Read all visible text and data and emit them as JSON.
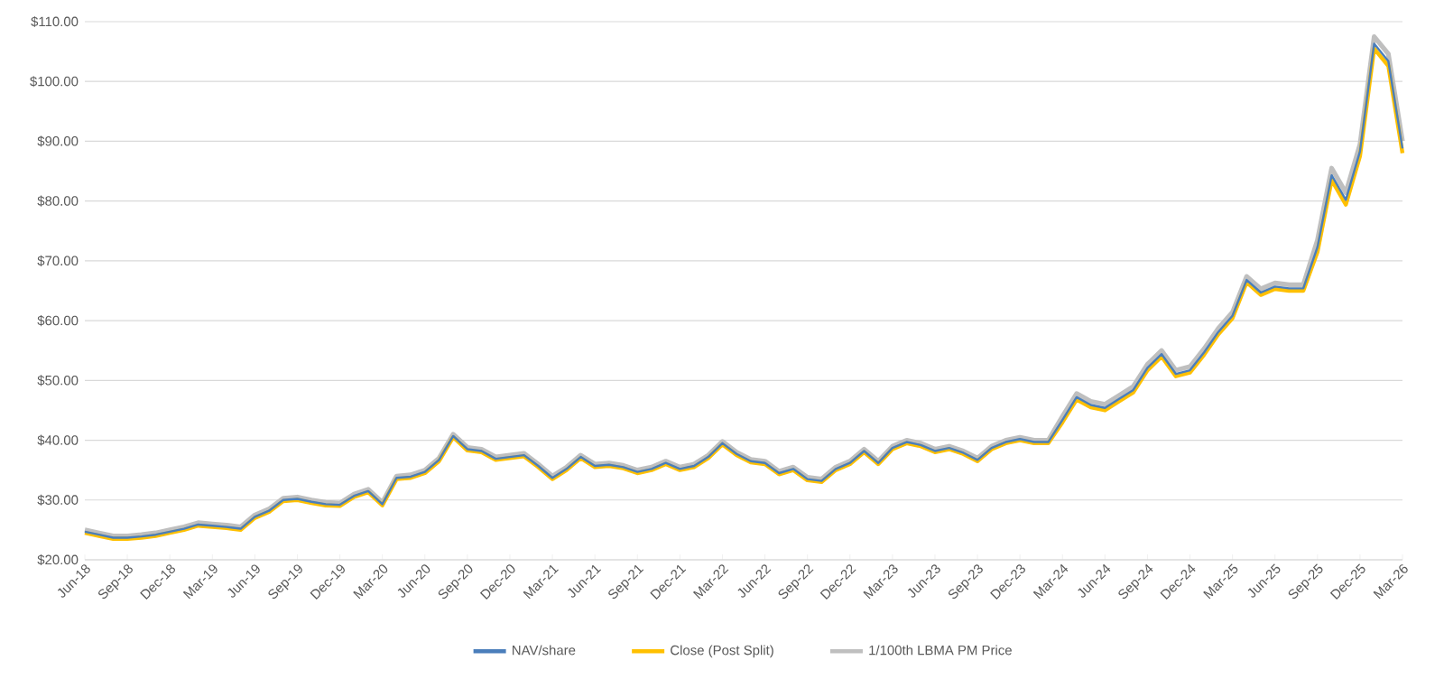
{
  "chart_data": {
    "type": "line",
    "x": [
      "2018-06",
      "2018-07",
      "2018-08",
      "2018-09",
      "2018-10",
      "2018-11",
      "2018-12",
      "2019-01",
      "2019-02",
      "2019-03",
      "2019-04",
      "2019-05",
      "2019-06",
      "2019-07",
      "2019-08",
      "2019-09",
      "2019-10",
      "2019-11",
      "2019-12",
      "2020-01",
      "2020-02",
      "2020-03",
      "2020-04",
      "2020-05",
      "2020-06",
      "2020-07",
      "2020-08",
      "2020-09",
      "2020-10",
      "2020-11",
      "2020-12",
      "2021-01",
      "2021-02",
      "2021-03",
      "2021-04",
      "2021-05",
      "2021-06",
      "2021-07",
      "2021-08",
      "2021-09",
      "2021-10",
      "2021-11",
      "2021-12",
      "2022-01",
      "2022-02",
      "2022-03",
      "2022-04",
      "2022-05",
      "2022-06",
      "2022-07",
      "2022-08",
      "2022-09",
      "2022-10",
      "2022-11",
      "2022-12",
      "2023-01",
      "2023-02",
      "2023-03",
      "2023-04",
      "2023-05",
      "2023-06",
      "2023-07",
      "2023-08",
      "2023-09",
      "2023-10",
      "2023-11",
      "2023-12",
      "2024-01",
      "2024-02",
      "2024-03",
      "2024-04",
      "2024-05",
      "2024-06",
      "2024-07",
      "2024-08",
      "2024-09",
      "2024-10",
      "2024-11",
      "2024-12",
      "2025-01",
      "2025-02",
      "2025-03",
      "2025-04",
      "2025-05",
      "2025-06",
      "2025-07",
      "2025-08",
      "2025-09",
      "2025-10",
      "2025-11",
      "2025-12",
      "2026-01",
      "2026-02",
      "2026-03"
    ],
    "series": [
      {
        "name": "NAV/share",
        "color": "#4a7ebb",
        "values": [
          24.7,
          24.2,
          23.7,
          23.7,
          23.9,
          24.2,
          24.7,
          25.2,
          25.9,
          25.7,
          25.5,
          25.2,
          27.2,
          28.2,
          30.0,
          30.2,
          29.7,
          29.3,
          29.2,
          30.7,
          31.5,
          29.3,
          33.7,
          33.9,
          34.7,
          36.7,
          40.7,
          38.5,
          38.2,
          36.9,
          37.2,
          37.5,
          35.7,
          33.7,
          35.2,
          37.2,
          35.7,
          35.9,
          35.5,
          34.7,
          35.2,
          36.2,
          35.2,
          35.7,
          37.2,
          39.5,
          37.7,
          36.5,
          36.2,
          34.5,
          35.2,
          33.5,
          33.2,
          35.2,
          36.2,
          38.2,
          36.2,
          38.7,
          39.7,
          39.2,
          38.2,
          38.7,
          37.9,
          36.7,
          38.7,
          39.7,
          40.2,
          39.7,
          39.7,
          43.4,
          47.2,
          45.9,
          45.4,
          46.9,
          48.4,
          52.1,
          54.4,
          51.1,
          51.7,
          54.7,
          58.1,
          60.8,
          66.8,
          64.7,
          65.7,
          65.4,
          65.4,
          72.3,
          84.3,
          80.2,
          88.3,
          106.3,
          103.4,
          88.8
        ]
      },
      {
        "name": "Close (Post Split)",
        "color": "#ffc000",
        "values": [
          24.5,
          24.0,
          23.5,
          23.5,
          23.7,
          24.0,
          24.5,
          25.0,
          25.7,
          25.5,
          25.3,
          25.0,
          27.0,
          28.0,
          29.8,
          30.0,
          29.5,
          29.1,
          29.0,
          30.5,
          31.3,
          29.1,
          33.5,
          33.7,
          34.5,
          36.5,
          40.5,
          38.3,
          38.0,
          36.7,
          37.0,
          37.3,
          35.5,
          33.5,
          35.0,
          37.0,
          35.5,
          35.7,
          35.3,
          34.5,
          35.0,
          36.0,
          35.0,
          35.5,
          37.0,
          39.3,
          37.5,
          36.3,
          36.0,
          34.3,
          35.0,
          33.3,
          33.0,
          35.0,
          36.0,
          38.0,
          36.0,
          38.5,
          39.5,
          39.0,
          38.0,
          38.5,
          37.7,
          36.5,
          38.5,
          39.5,
          40.0,
          39.5,
          39.5,
          43.0,
          46.8,
          45.5,
          45.0,
          46.5,
          48.0,
          51.7,
          54.0,
          50.7,
          51.3,
          54.3,
          57.7,
          60.4,
          66.4,
          64.3,
          65.3,
          65.0,
          65.0,
          71.5,
          83.5,
          79.4,
          87.5,
          105.5,
          102.6,
          88.0
        ]
      },
      {
        "name": "1/100th LBMA PM Price",
        "color": "#bfbfbf",
        "values": [
          25.0,
          24.5,
          24.0,
          24.0,
          24.2,
          24.5,
          25.0,
          25.5,
          26.2,
          26.0,
          25.8,
          25.5,
          27.5,
          28.5,
          30.3,
          30.5,
          30.0,
          29.6,
          29.5,
          31.0,
          31.8,
          29.6,
          34.0,
          34.2,
          35.0,
          37.0,
          41.0,
          38.8,
          38.5,
          37.2,
          37.5,
          37.8,
          36.0,
          34.0,
          35.5,
          37.5,
          36.0,
          36.2,
          35.8,
          35.0,
          35.5,
          36.5,
          35.5,
          36.0,
          37.5,
          39.8,
          38.0,
          36.8,
          36.5,
          34.8,
          35.5,
          33.8,
          33.5,
          35.5,
          36.5,
          38.5,
          36.5,
          39.0,
          40.0,
          39.5,
          38.5,
          39.0,
          38.2,
          37.0,
          39.0,
          40.0,
          40.5,
          40.0,
          40.0,
          44.0,
          47.8,
          46.5,
          46.0,
          47.5,
          49.0,
          52.7,
          55.0,
          51.7,
          52.3,
          55.3,
          58.7,
          61.4,
          67.4,
          65.3,
          66.3,
          66.0,
          66.0,
          73.5,
          85.5,
          81.4,
          89.5,
          107.5,
          104.6,
          90.0
        ]
      }
    ],
    "xlim": [
      "2018-06",
      "2026-03"
    ],
    "xticks": [
      {
        "value": "2018-06",
        "label": "Jun-18"
      },
      {
        "value": "2018-09",
        "label": "Sep-18"
      },
      {
        "value": "2018-12",
        "label": "Dec-18"
      },
      {
        "value": "2019-03",
        "label": "Mar-19"
      },
      {
        "value": "2019-06",
        "label": "Jun-19"
      },
      {
        "value": "2019-09",
        "label": "Sep-19"
      },
      {
        "value": "2019-12",
        "label": "Dec-19"
      },
      {
        "value": "2020-03",
        "label": "Mar-20"
      },
      {
        "value": "2020-06",
        "label": "Jun-20"
      },
      {
        "value": "2020-09",
        "label": "Sep-20"
      },
      {
        "value": "2020-12",
        "label": "Dec-20"
      },
      {
        "value": "2021-03",
        "label": "Mar-21"
      },
      {
        "value": "2021-06",
        "label": "Jun-21"
      },
      {
        "value": "2021-09",
        "label": "Sep-21"
      },
      {
        "value": "2021-12",
        "label": "Dec-21"
      },
      {
        "value": "2022-03",
        "label": "Mar-22"
      },
      {
        "value": "2022-06",
        "label": "Jun-22"
      },
      {
        "value": "2022-09",
        "label": "Sep-22"
      },
      {
        "value": "2022-12",
        "label": "Dec-22"
      },
      {
        "value": "2023-03",
        "label": "Mar-23"
      },
      {
        "value": "2023-06",
        "label": "Jun-23"
      },
      {
        "value": "2023-09",
        "label": "Sep-23"
      },
      {
        "value": "2023-12",
        "label": "Dec-23"
      },
      {
        "value": "2024-03",
        "label": "Mar-24"
      },
      {
        "value": "2024-06",
        "label": "Jun-24"
      },
      {
        "value": "2024-09",
        "label": "Sep-24"
      },
      {
        "value": "2024-12",
        "label": "Dec-24"
      },
      {
        "value": "2025-03",
        "label": "Mar-25"
      },
      {
        "value": "2025-06",
        "label": "Jun-25"
      },
      {
        "value": "2025-09",
        "label": "Sep-25"
      },
      {
        "value": "2025-12",
        "label": "Dec-25"
      },
      {
        "value": "2026-03",
        "label": "Mar-26"
      }
    ],
    "ylim": [
      20,
      110
    ],
    "yticks": [
      {
        "value": 20,
        "label": "$20.00"
      },
      {
        "value": 30,
        "label": "$30.00"
      },
      {
        "value": 40,
        "label": "$40.00"
      },
      {
        "value": 50,
        "label": "$50.00"
      },
      {
        "value": 60,
        "label": "$60.00"
      },
      {
        "value": 70,
        "label": "$70.00"
      },
      {
        "value": 80,
        "label": "$80.00"
      },
      {
        "value": 90,
        "label": "$90.00"
      },
      {
        "value": 100,
        "label": "$100.00"
      },
      {
        "value": 110,
        "label": "$110.00"
      }
    ],
    "grid": "y",
    "legend": "bottom"
  }
}
